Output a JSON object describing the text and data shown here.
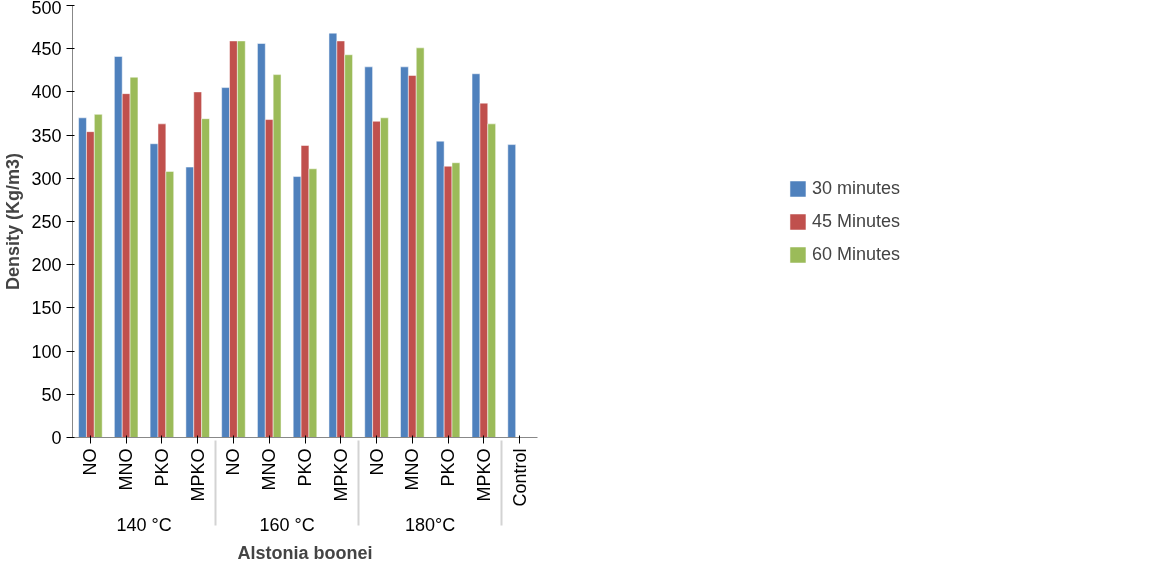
{
  "chart_data": {
    "type": "bar",
    "xlabel": "Alstonia boonei",
    "ylabel": "Density (Kg/m3)",
    "categories": [
      "NO",
      "MNO",
      "PKO",
      "MPKO",
      "NO",
      "MNO",
      "PKO",
      "MPKO",
      "NO",
      "MNO",
      "PKO",
      "MPKO",
      "Control"
    ],
    "annotations": [
      "140 °C",
      "160 °C",
      "180°C"
    ],
    "series": [
      {
        "name": "30 minutes",
        "color": "#4f81bd",
        "values": [
          370,
          441,
          340,
          313,
          405,
          456,
          302,
          468,
          429,
          429,
          343,
          421,
          339
        ]
      },
      {
        "name": "45 Minutes",
        "color": "#c0504d",
        "values": [
          354,
          398,
          363,
          400,
          459,
          368,
          338,
          459,
          366,
          419,
          314,
          387,
          null
        ]
      },
      {
        "name": "60 Minutes",
        "color": "#9bbb59",
        "values": [
          374,
          417,
          308,
          369,
          459,
          420,
          311,
          443,
          370,
          451,
          318,
          363,
          null
        ]
      }
    ],
    "ylim": [
      0,
      500
    ],
    "yticks": [
      0,
      50,
      100,
      150,
      200,
      250,
      300,
      350,
      400,
      450,
      500
    ],
    "grid": false,
    "legend": "right"
  }
}
